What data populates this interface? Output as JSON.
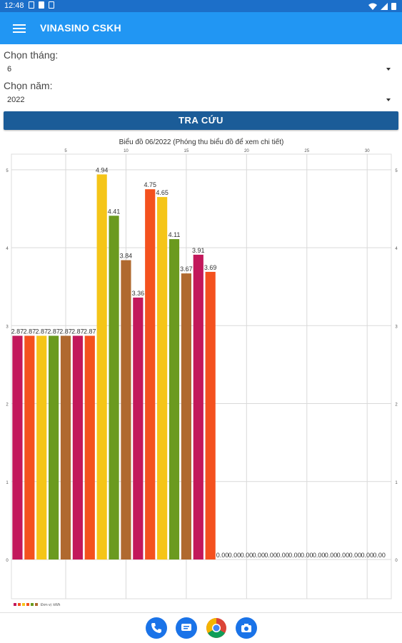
{
  "status_bar": {
    "time": "12:48"
  },
  "app_bar": {
    "title": "VINASINO CSKH"
  },
  "form": {
    "month_label": "Chọn tháng:",
    "month_value": "6",
    "year_label": "Chọn năm:",
    "year_value": "2022",
    "search_button": "TRA CỨU"
  },
  "chart_data": {
    "type": "bar",
    "title": "Biểu đồ 06/2022 (Phóng thu biểu đồ để xem chi tiết)",
    "x_ticks": [
      5,
      10,
      15,
      20,
      25,
      30
    ],
    "y_ticks": [
      0,
      1,
      2,
      3,
      4,
      5
    ],
    "xlim": [
      0.5,
      32
    ],
    "ylim": [
      0,
      5.2
    ],
    "x": [
      1,
      2,
      3,
      4,
      5,
      6,
      7,
      8,
      9,
      10,
      11,
      12,
      13,
      14,
      15,
      16,
      17,
      18,
      19,
      20,
      21,
      22,
      23,
      24,
      25,
      26,
      27,
      28,
      29,
      30,
      31
    ],
    "values": [
      2.87,
      2.87,
      2.87,
      2.87,
      2.87,
      2.87,
      2.87,
      4.94,
      4.41,
      3.84,
      3.36,
      4.75,
      4.65,
      4.11,
      3.67,
      3.91,
      3.69,
      0,
      0,
      0,
      0,
      0,
      0,
      0,
      0,
      0,
      0,
      0,
      0,
      0,
      0
    ],
    "labels": [
      "2.87",
      "2.87",
      "2.87",
      "2.87",
      "2.87",
      "2.87",
      "2.87",
      "4.94",
      "4.41",
      "3.84",
      "3.36",
      "4.75",
      "4.65",
      "4.11",
      "3.67",
      "3.91",
      "3.69",
      "0.00",
      "0.00",
      "0.00",
      "0.00",
      "0.00",
      "0.00",
      "0.00",
      "0.00",
      "0.00",
      "0.00",
      "0.00",
      "0.00",
      "0.00",
      "0.00"
    ],
    "colors": [
      "#c2185b",
      "#f4511e",
      "#f5c518",
      "#6b9a1f",
      "#b0692f",
      "#c2185b",
      "#f4511e",
      "#f5c518",
      "#6b9a1f",
      "#b0692f",
      "#c2185b",
      "#f4511e",
      "#f5c518",
      "#6b9a1f",
      "#b0692f",
      "#c2185b",
      "#f4511e"
    ],
    "legend_label": "Đơn vị: kWh",
    "legend_colors": [
      "#c2185b",
      "#f4511e",
      "#f5c518",
      "#f4511e",
      "#6b9a1f",
      "#b0692f"
    ],
    "grid": true,
    "legend_position": "bottom-left"
  }
}
